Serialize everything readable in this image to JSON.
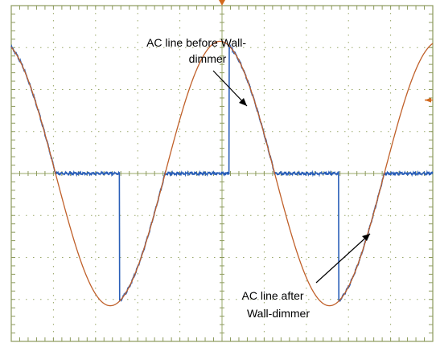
{
  "chart_data": {
    "type": "line",
    "title": "",
    "xlabel": "",
    "ylabel": "",
    "grid": true,
    "xlim": [
      0,
      10
    ],
    "ylim": [
      -4,
      4
    ],
    "period_div": 5.2,
    "series": [
      {
        "name": "",
        "color": "#c0602a",
        "role": "ac-before",
        "amplitude_div": 3.15
      },
      {
        "name": "",
        "color": "#2a5fb8",
        "role": "ac-after",
        "conduction_start_phase_deg": [
          105,
          285
        ]
      }
    ],
    "annotations": [
      {
        "lines": [
          "AC line before Wall-",
          "dimmer"
        ]
      },
      {
        "lines": [
          "AC line  after",
          "Wall-dimmer"
        ]
      }
    ]
  },
  "colors": {
    "grid": "#9aa86a",
    "frame": "#8c9a5c",
    "marker": "#d2691e"
  }
}
